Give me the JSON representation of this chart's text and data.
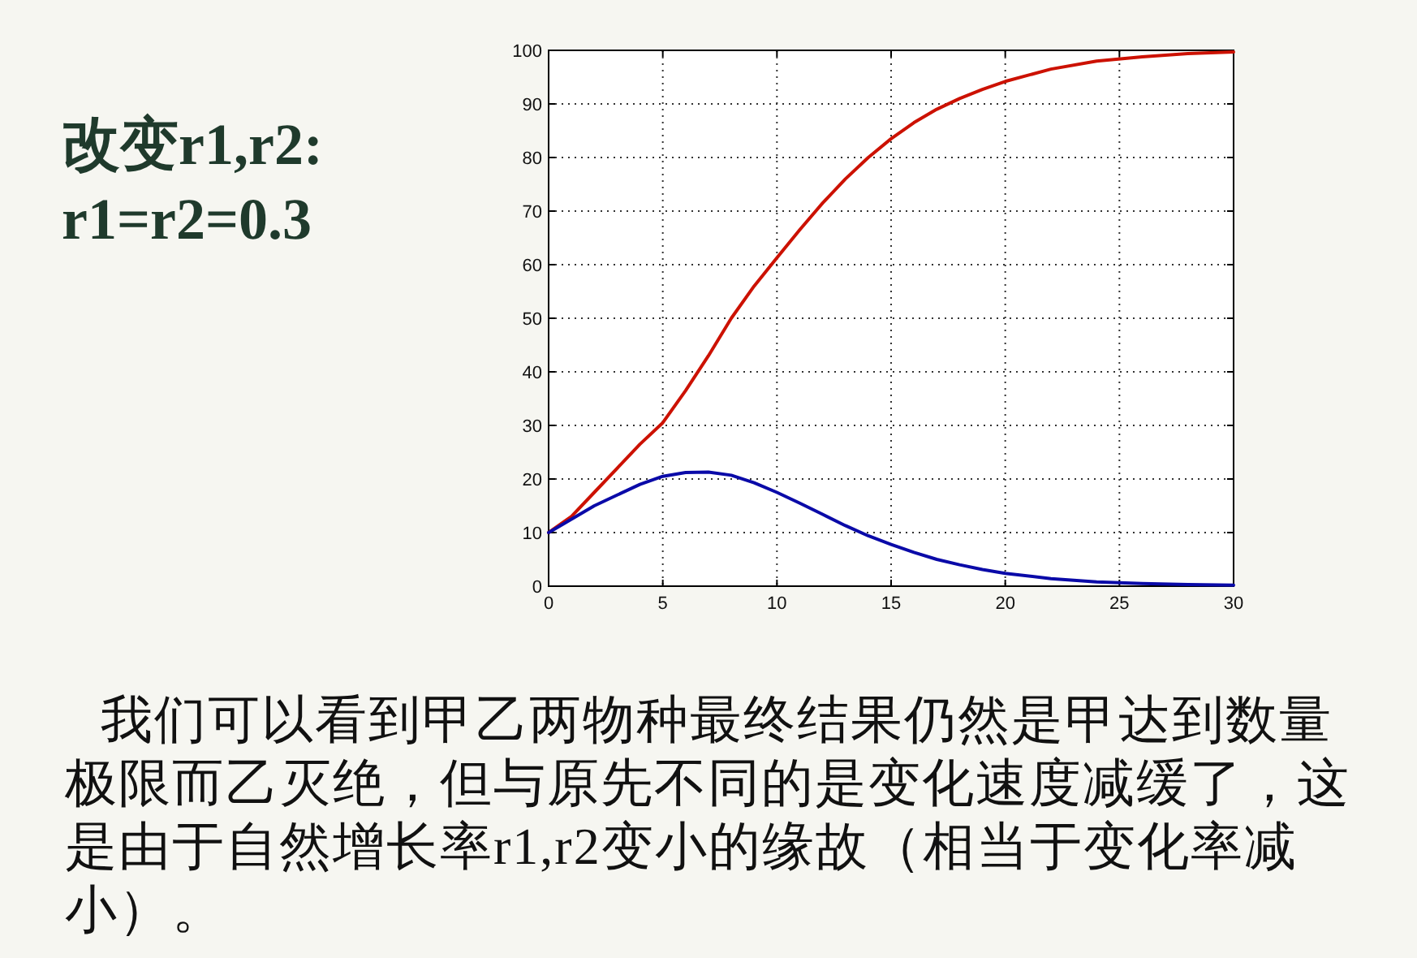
{
  "chart_data": {
    "type": "line",
    "title": "改变r1,r2:",
    "subtitle": "r1=r2=0.3",
    "annotations": [
      "我们可以看到甲乙两物种最终结果仍然是甲达到数量极限而乙灭绝，但与原先不同的是变化速度减缓了，这是由于自然增长率r1,r2变小的缘故（相当于变化率减小）。"
    ],
    "x": [
      0,
      1,
      2,
      3,
      4,
      5,
      6,
      7,
      8,
      9,
      10,
      11,
      12,
      13,
      14,
      15,
      16,
      17,
      18,
      19,
      20,
      22,
      24,
      26,
      28,
      30
    ],
    "series": [
      {
        "color": "#cc1100",
        "values": [
          10,
          13,
          17.5,
          22,
          26.5,
          30.5,
          36.5,
          43,
          50,
          56,
          61.3,
          66.5,
          71.5,
          76,
          80,
          83.5,
          86.5,
          89,
          91,
          92.7,
          94.2,
          96.5,
          98,
          98.8,
          99.4,
          99.7
        ]
      },
      {
        "color": "#0a0aa8",
        "values": [
          10,
          12.5,
          15,
          17,
          19,
          20.5,
          21.2,
          21.3,
          20.7,
          19.3,
          17.5,
          15.5,
          13.4,
          11.3,
          9.4,
          7.8,
          6.3,
          5,
          4,
          3.1,
          2.4,
          1.4,
          0.8,
          0.5,
          0.3,
          0.2
        ]
      }
    ],
    "xlim": [
      0,
      30
    ],
    "ylim": [
      0,
      100
    ],
    "xticks": [
      0,
      5,
      10,
      15,
      20,
      25,
      30
    ],
    "yticks": [
      0,
      10,
      20,
      30,
      40,
      50,
      60,
      70,
      80,
      90,
      100
    ],
    "grid": true
  }
}
